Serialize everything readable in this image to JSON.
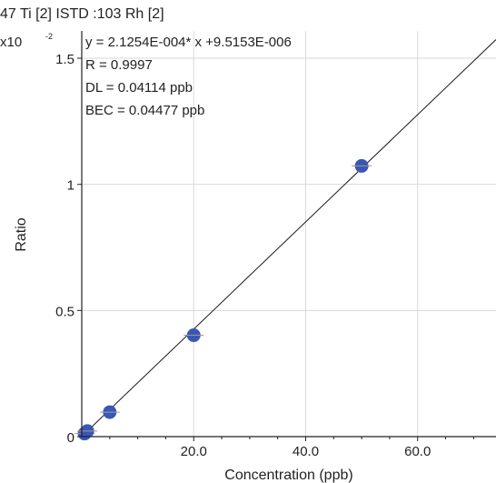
{
  "chart_data": {
    "type": "scatter",
    "title": "47 Ti [2] ISTD :103 Rh [2]",
    "y_multiplier": "x10",
    "y_multiplier_exp": "-2",
    "xlabel": "Concentration (ppb)",
    "ylabel": "Ratio",
    "xlim": [
      0,
      74
    ],
    "ylim": [
      0,
      1.6
    ],
    "x_ticks": [
      20,
      40,
      60
    ],
    "x_tick_labels": [
      "20.0",
      "40.0",
      "60.0"
    ],
    "y_ticks": [
      0,
      0.5,
      1,
      1.5
    ],
    "y_tick_labels": [
      "0",
      "0.5",
      "1",
      "1.5"
    ],
    "grid": true,
    "annotations": [
      "y = 2.1254E-004* x +9.5153E-006",
      "R = 0.9997",
      "DL = 0.04114 ppb",
      "BEC = 0.04477 ppb"
    ],
    "fit_line": {
      "slope": 0.021254,
      "intercept": 0.00095153
    },
    "points": [
      {
        "x": 0.5,
        "y": 0.012
      },
      {
        "x": 1,
        "y": 0.022
      },
      {
        "x": 5,
        "y": 0.097
      },
      {
        "x": 20,
        "y": 0.402
      },
      {
        "x": 50,
        "y": 1.073
      }
    ],
    "colors": {
      "point": "#3a57b5",
      "line": "#1a1a1a",
      "grid": "#d9d9d9",
      "error_bar": "#9a9a9a"
    }
  }
}
